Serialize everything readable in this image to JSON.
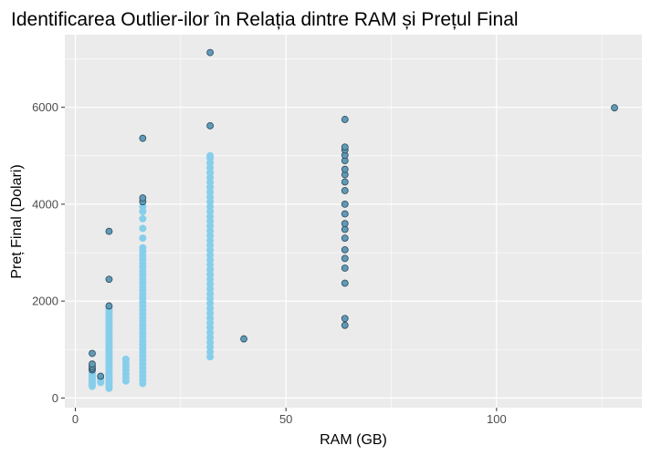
{
  "chart_data": {
    "type": "scatter",
    "title": "Identificarea Outlier-ilor în Relația dintre RAM și Prețul Final",
    "xlabel": "RAM (GB)",
    "ylabel": "Preț Final (Dolari)",
    "xlim": [
      -2.5,
      134.5
    ],
    "ylim": [
      -200,
      7500
    ],
    "x_ticks": [
      0,
      50,
      100
    ],
    "y_ticks": [
      0,
      2000,
      4000,
      6000
    ],
    "grid": true,
    "legend": "none",
    "colors": {
      "panel": "#ebebeb",
      "grid_major": "#ffffff",
      "point_fill": "#87ceeb",
      "outlier_fill": "#5f9ab8",
      "outlier_stroke": "#2e4a5a"
    },
    "points": [
      {
        "ram": 4,
        "prices": [
          240,
          270,
          300,
          330,
          360,
          390,
          420,
          450,
          480,
          510,
          540
        ],
        "outliers": [
          580,
          610,
          650,
          700,
          920
        ]
      },
      {
        "ram": 6,
        "prices": [
          320,
          360,
          400
        ],
        "outliers": [
          450
        ]
      },
      {
        "ram": 8,
        "prices": [
          200,
          250,
          300,
          350,
          400,
          450,
          500,
          550,
          600,
          650,
          700,
          750,
          800,
          850,
          900,
          950,
          1000,
          1050,
          1100,
          1150,
          1200,
          1250,
          1300,
          1350,
          1400,
          1450,
          1500,
          1550,
          1600,
          1650,
          1700,
          1750,
          1800,
          1850
        ],
        "outliers": [
          1900,
          2450,
          3440
        ]
      },
      {
        "ram": 12,
        "prices": [
          350,
          420,
          500,
          580,
          650,
          720,
          800
        ],
        "outliers": []
      },
      {
        "ram": 16,
        "prices": [
          300,
          380,
          460,
          540,
          620,
          700,
          780,
          860,
          940,
          1020,
          1100,
          1180,
          1260,
          1340,
          1420,
          1500,
          1580,
          1660,
          1740,
          1820,
          1900,
          1980,
          2060,
          2140,
          2220,
          2300,
          2380,
          2460,
          2540,
          2620,
          2700,
          2780,
          2860,
          2940,
          3020,
          3100,
          3300,
          3500,
          3700,
          3850,
          3950
        ],
        "outliers": [
          4050,
          4130,
          5360
        ]
      },
      {
        "ram": 32,
        "prices": [
          850,
          950,
          1050,
          1150,
          1250,
          1350,
          1450,
          1550,
          1650,
          1750,
          1850,
          1950,
          2050,
          2150,
          2250,
          2350,
          2450,
          2550,
          2650,
          2750,
          2850,
          2950,
          3050,
          3150,
          3250,
          3350,
          3450,
          3550,
          3650,
          3750,
          3850,
          3950,
          4050,
          4150,
          4250,
          4350,
          4450,
          4550,
          4650,
          4750,
          4850,
          4950,
          5000
        ],
        "outliers": [
          5620,
          7130
        ]
      },
      {
        "ram": 40,
        "prices": [],
        "outliers": [
          1220
        ]
      },
      {
        "ram": 64,
        "prices": [],
        "outliers": [
          1500,
          1640,
          2370,
          2680,
          2880,
          3060,
          3300,
          3480,
          3600,
          3800,
          4000,
          4280,
          4460,
          4610,
          4720,
          4900,
          5010,
          5120,
          5180,
          5750
        ]
      },
      {
        "ram": 128,
        "prices": [],
        "outliers": [
          5990
        ]
      }
    ]
  }
}
